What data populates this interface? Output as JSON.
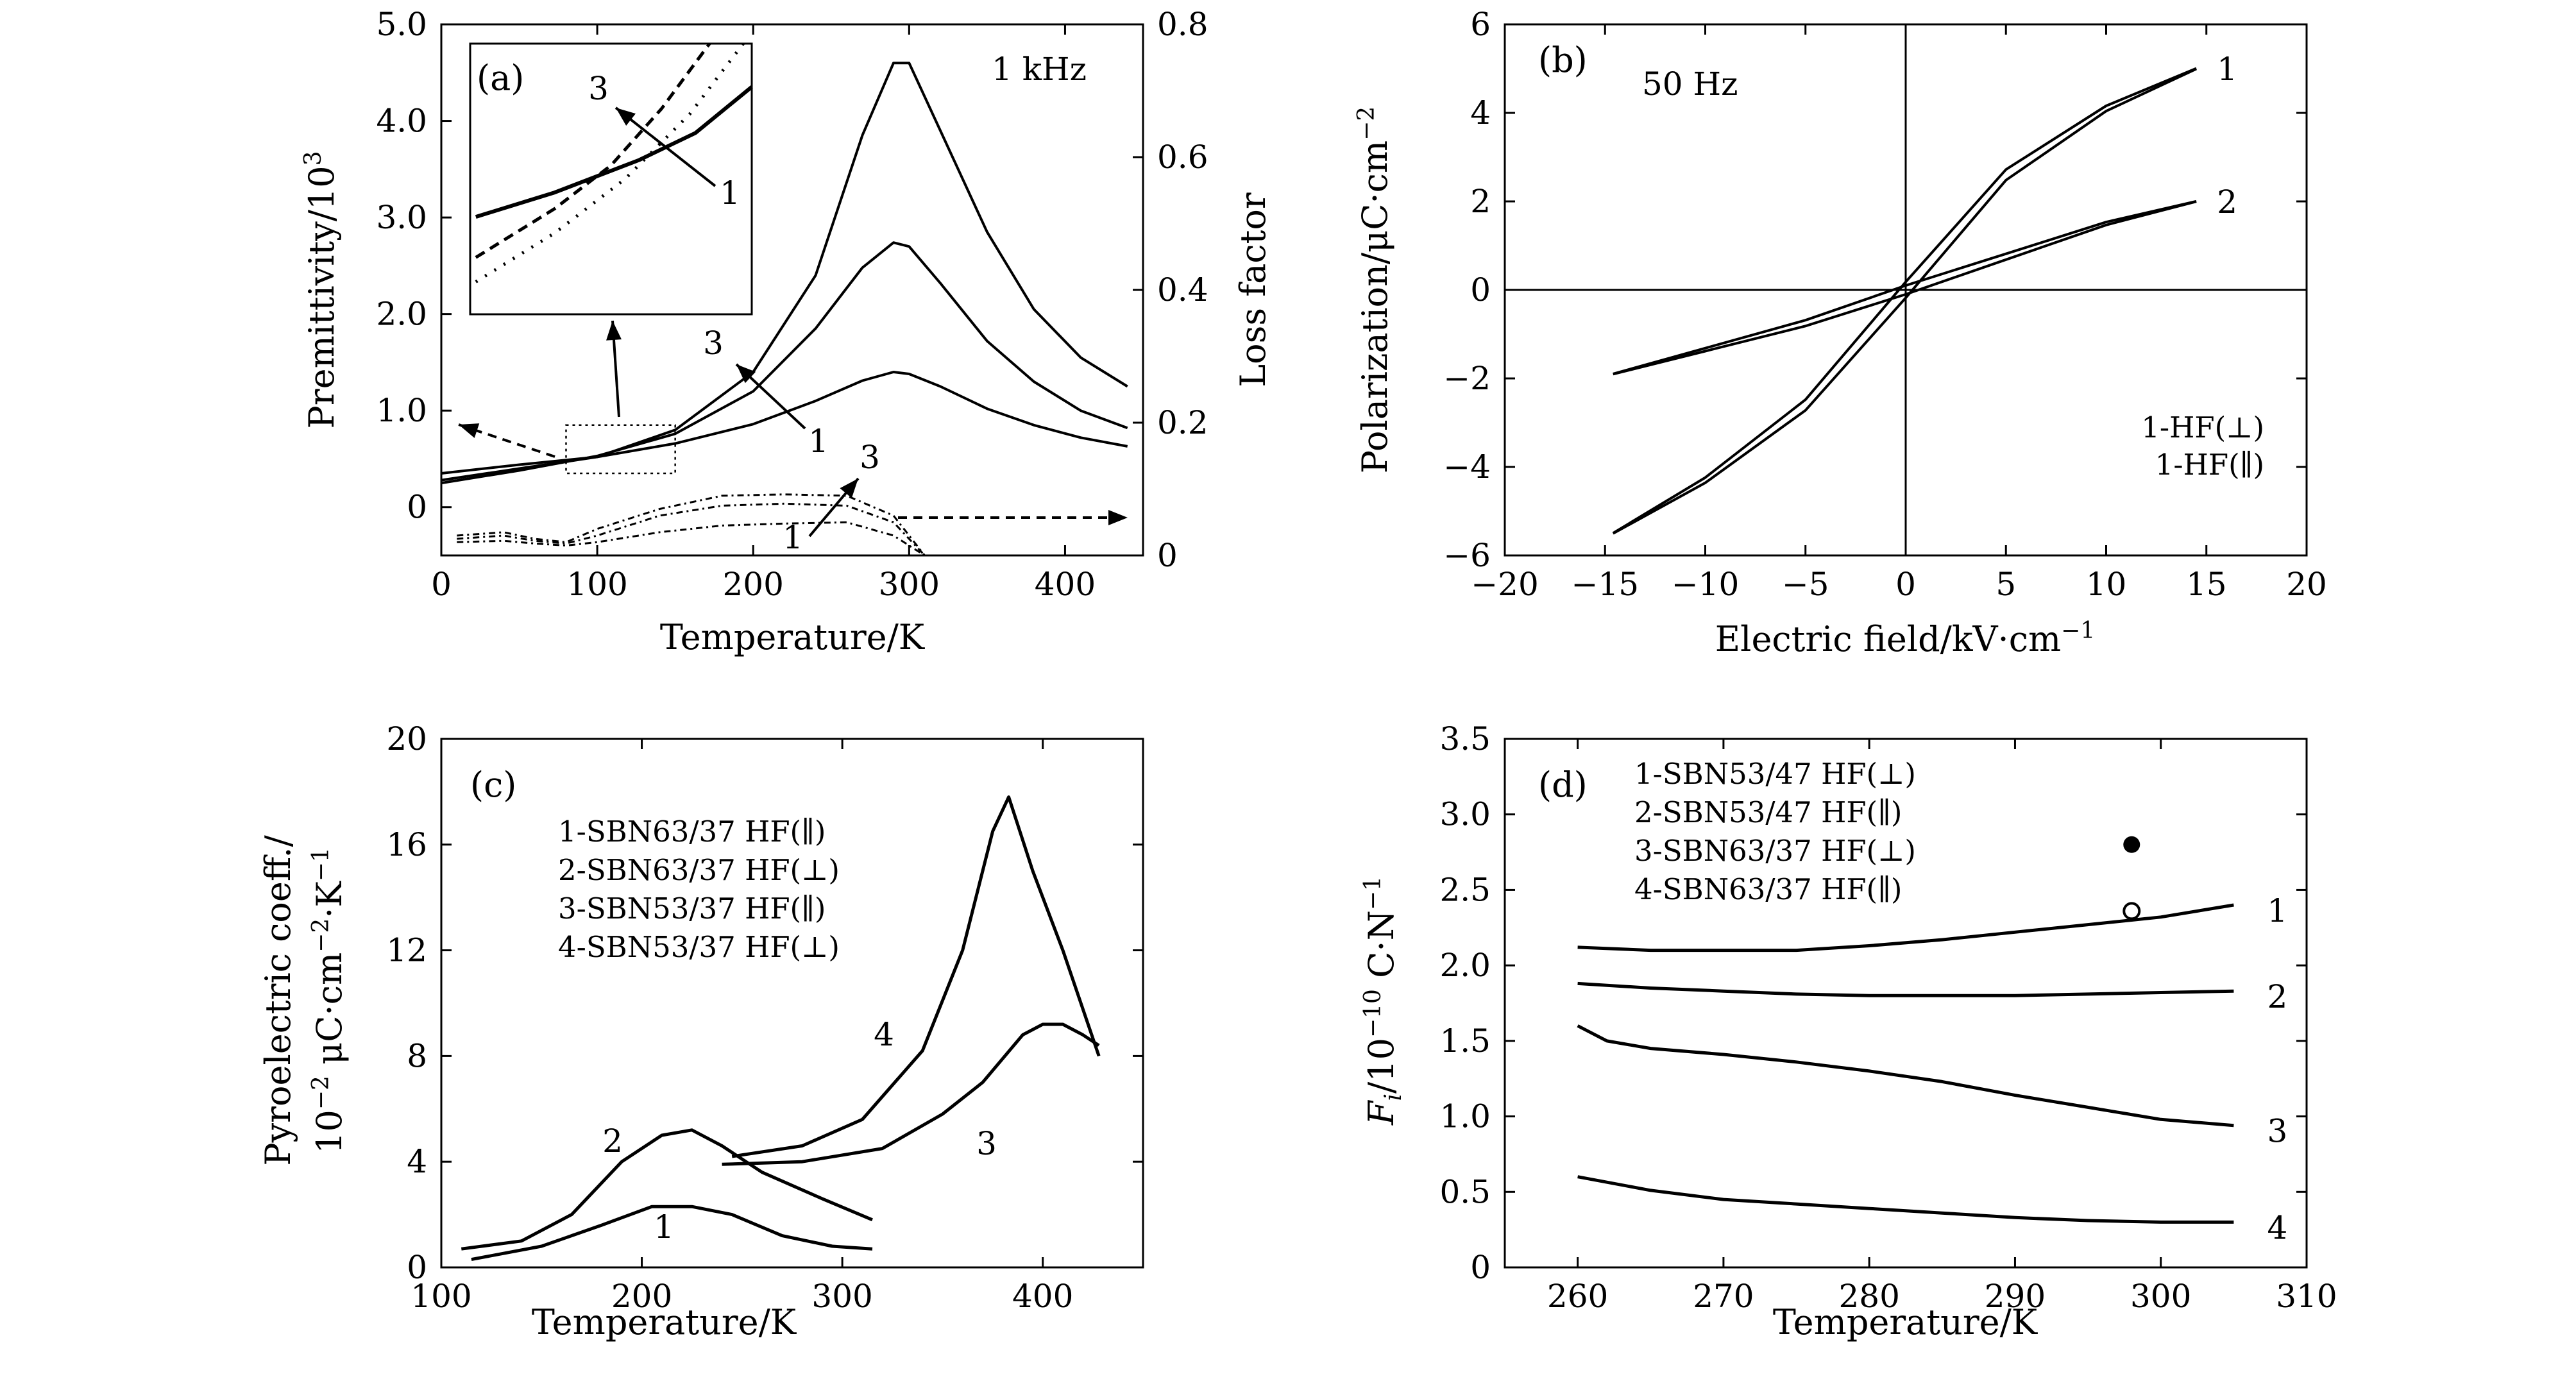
{
  "chart_data": [
    {
      "type": "line",
      "panel_label": "(a)",
      "annotation": "1 kHz",
      "xlabel": "Temperature/K",
      "ylabel": "Premittivity/10^3",
      "y2label": "Loss factor",
      "xlim": [
        0,
        450
      ],
      "ylim": [
        -0.5,
        5.0
      ],
      "y2lim": [
        0,
        0.8
      ],
      "xticks": [
        "0",
        "100",
        "200",
        "300",
        "400"
      ],
      "yticks": [
        "0",
        "1.0",
        "2.0",
        "3.0",
        "4.0",
        "5.0"
      ],
      "y2ticks": [
        "0",
        "0.2",
        "0.4",
        "0.6",
        "0.8"
      ],
      "curve_labels": [
        "3",
        "1",
        "3",
        "1"
      ],
      "inset_labels": [
        "3",
        "1"
      ],
      "series": [
        {
          "curve": "1",
          "quantity": "permittivity",
          "x": [
            0,
            50,
            100,
            150,
            200,
            240,
            270,
            290,
            300,
            320,
            350,
            380,
            410,
            440
          ],
          "y": [
            0.28,
            0.4,
            0.52,
            0.66,
            0.86,
            1.1,
            1.31,
            1.4,
            1.38,
            1.25,
            1.02,
            0.85,
            0.72,
            0.63
          ]
        },
        {
          "curve": "2",
          "quantity": "permittivity",
          "x": [
            0,
            50,
            100,
            150,
            200,
            240,
            270,
            290,
            300,
            320,
            350,
            380,
            410,
            440
          ],
          "y": [
            0.25,
            0.38,
            0.53,
            0.76,
            1.2,
            1.85,
            2.48,
            2.74,
            2.7,
            2.32,
            1.72,
            1.3,
            1.0,
            0.82
          ]
        },
        {
          "curve": "3",
          "quantity": "permittivity",
          "x": [
            0,
            50,
            100,
            150,
            200,
            240,
            270,
            290,
            300,
            320,
            350,
            380,
            410,
            440
          ],
          "y": [
            0.35,
            0.44,
            0.52,
            0.8,
            1.4,
            2.4,
            3.85,
            4.6,
            4.6,
            3.9,
            2.85,
            2.05,
            1.55,
            1.25
          ]
        },
        {
          "curve": "1",
          "quantity": "loss factor",
          "x": [
            10,
            40,
            60,
            80,
            100,
            140,
            180,
            220,
            260,
            290,
            310
          ],
          "y": [
            0.02,
            0.022,
            0.018,
            0.015,
            0.02,
            0.035,
            0.045,
            0.048,
            0.05,
            0.03,
            0.0
          ]
        },
        {
          "curve": "2",
          "quantity": "loss factor",
          "x": [
            10,
            40,
            60,
            80,
            100,
            140,
            180,
            220,
            260,
            290,
            310
          ],
          "y": [
            0.025,
            0.03,
            0.022,
            0.018,
            0.03,
            0.06,
            0.075,
            0.078,
            0.075,
            0.05,
            0.0
          ]
        },
        {
          "curve": "3",
          "quantity": "loss factor",
          "x": [
            10,
            40,
            60,
            80,
            100,
            140,
            180,
            220,
            260,
            290,
            310
          ],
          "y": [
            0.03,
            0.035,
            0.025,
            0.02,
            0.04,
            0.07,
            0.09,
            0.092,
            0.09,
            0.06,
            0.0
          ]
        }
      ]
    },
    {
      "type": "line",
      "panel_label": "(b)",
      "annotation": "50 Hz",
      "xlabel": "Electric field/kV·cm^-1",
      "ylabel": "Polarization/μC·cm^-2",
      "xlim": [
        -20,
        20
      ],
      "ylim": [
        -6,
        6
      ],
      "xticks": [
        "−20",
        "−15",
        "−10",
        "−5",
        "0",
        "5",
        "10",
        "15",
        "20"
      ],
      "yticks": [
        "−6",
        "−4",
        "−2",
        "0",
        "2",
        "4",
        "6"
      ],
      "legend": [
        "1-HF(⊥)",
        "1-HF(∥)"
      ],
      "series": [
        {
          "name": "1",
          "x": [
            -14.6,
            -10,
            -5,
            0,
            5,
            10,
            14.5
          ],
          "y": [
            -5.5,
            -4.3,
            -2.6,
            0,
            2.6,
            4.1,
            5.0
          ]
        },
        {
          "name": "2",
          "x": [
            -14.6,
            -10,
            -5,
            0,
            5,
            10,
            14.5
          ],
          "y": [
            -1.9,
            -1.35,
            -0.75,
            0,
            0.75,
            1.5,
            2.0
          ]
        }
      ]
    },
    {
      "type": "line",
      "panel_label": "(c)",
      "xlabel": "Temperature/K",
      "ylabel": "Pyroelectric coeff./10^-2 μC·cm^-2·K^-1",
      "xlim": [
        100,
        450
      ],
      "ylim": [
        0,
        20
      ],
      "xticks": [
        "100",
        "200",
        "300",
        "400"
      ],
      "yticks": [
        "0",
        "4",
        "8",
        "12",
        "16",
        "20"
      ],
      "legend": [
        "1-SBN63/37 HF(∥)",
        "2-SBN63/37 HF(⊥)",
        "3-SBN53/37 HF(∥)",
        "4-SBN53/37 HF(⊥)"
      ],
      "series": [
        {
          "name": "1",
          "x": [
            115,
            150,
            180,
            205,
            225,
            245,
            270,
            295,
            315
          ],
          "y": [
            0.3,
            0.8,
            1.6,
            2.3,
            2.3,
            2.0,
            1.2,
            0.8,
            0.7
          ]
        },
        {
          "name": "2",
          "x": [
            110,
            140,
            165,
            190,
            210,
            225,
            240,
            260,
            290,
            315
          ],
          "y": [
            0.7,
            1.0,
            2.0,
            4.0,
            5.0,
            5.2,
            4.6,
            3.6,
            2.6,
            1.8
          ]
        },
        {
          "name": "3",
          "x": [
            240,
            280,
            320,
            350,
            370,
            390,
            400,
            410,
            420,
            428
          ],
          "y": [
            3.9,
            4.0,
            4.5,
            5.8,
            7.0,
            8.8,
            9.2,
            9.2,
            8.8,
            8.4
          ]
        },
        {
          "name": "4",
          "x": [
            245,
            280,
            310,
            340,
            360,
            375,
            383,
            395,
            410,
            428
          ],
          "y": [
            4.2,
            4.6,
            5.6,
            8.2,
            12.0,
            16.5,
            17.8,
            15.0,
            12.0,
            8.0
          ]
        }
      ]
    },
    {
      "type": "line",
      "panel_label": "(d)",
      "xlabel": "Temperature/K",
      "ylabel": "F_i/10^-10 C·N^-1",
      "xlim": [
        255,
        310
      ],
      "ylim": [
        0,
        3.5
      ],
      "xticks": [
        "260",
        "270",
        "280",
        "290",
        "300",
        "310"
      ],
      "yticks": [
        "0",
        "0.5",
        "1.0",
        "1.5",
        "2.0",
        "2.5",
        "3.0",
        "3.5"
      ],
      "legend": [
        "1-SBN53/47 HF(⊥)",
        "2-SBN53/47 HF(∥)",
        "3-SBN63/37 HF(⊥)",
        "4-SBN63/37 HF(∥)"
      ],
      "series": [
        {
          "name": "1",
          "x": [
            260,
            265,
            270,
            275,
            280,
            285,
            290,
            295,
            300,
            305
          ],
          "y": [
            2.12,
            2.1,
            2.1,
            2.1,
            2.13,
            2.17,
            2.22,
            2.27,
            2.32,
            2.4
          ]
        },
        {
          "name": "2",
          "x": [
            260,
            265,
            270,
            275,
            280,
            285,
            290,
            295,
            300,
            305
          ],
          "y": [
            1.88,
            1.85,
            1.83,
            1.81,
            1.8,
            1.8,
            1.8,
            1.81,
            1.82,
            1.83
          ]
        },
        {
          "name": "3",
          "x": [
            260,
            262,
            265,
            270,
            275,
            280,
            285,
            290,
            295,
            300,
            305
          ],
          "y": [
            1.6,
            1.5,
            1.45,
            1.41,
            1.36,
            1.3,
            1.23,
            1.14,
            1.06,
            0.98,
            0.94
          ]
        },
        {
          "name": "4",
          "x": [
            260,
            265,
            270,
            275,
            280,
            285,
            290,
            295,
            300,
            305
          ],
          "y": [
            0.6,
            0.51,
            0.45,
            0.42,
            0.39,
            0.36,
            0.33,
            0.31,
            0.3,
            0.3
          ]
        },
        {
          "name": "solid point",
          "x": [
            298
          ],
          "y": [
            2.8
          ]
        },
        {
          "name": "open point",
          "x": [
            298
          ],
          "y": [
            2.36
          ]
        }
      ]
    }
  ]
}
